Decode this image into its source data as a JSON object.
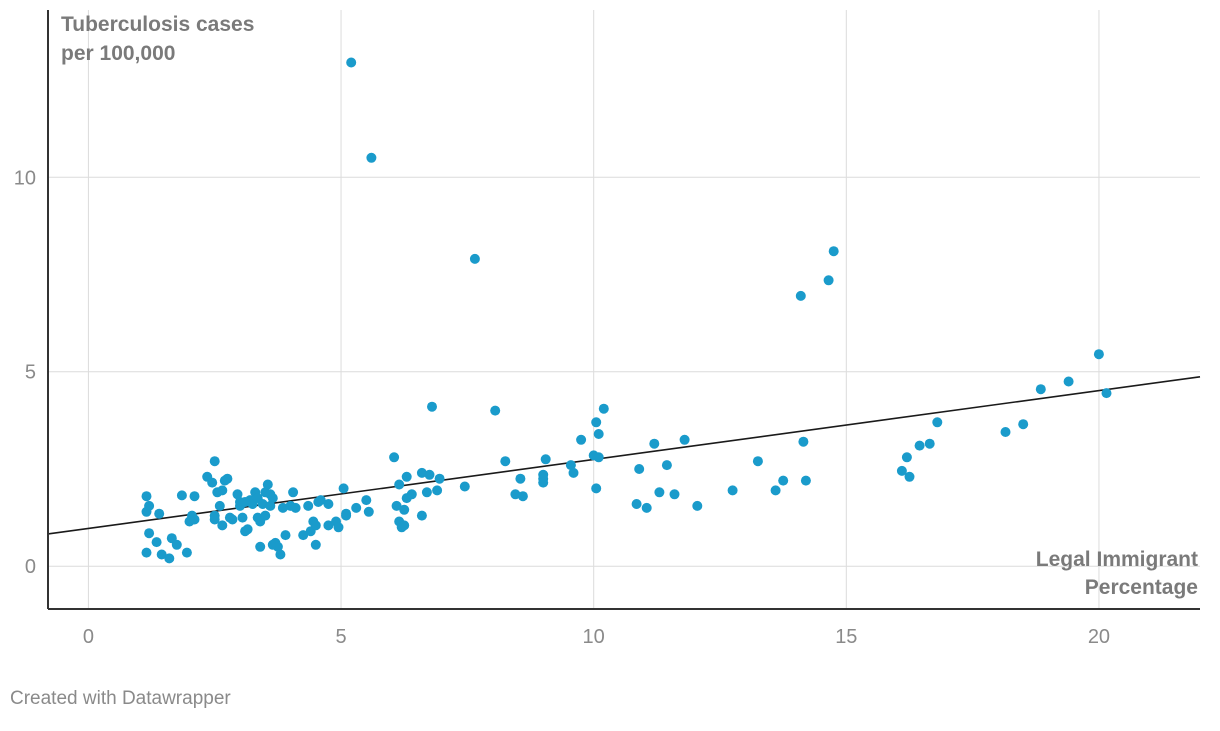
{
  "chart_data": {
    "type": "scatter",
    "ylabel_lines": [
      "Tuberculosis cases",
      "per 100,000"
    ],
    "xlabel_lines": [
      "Legal Immigrant",
      "Percentage"
    ],
    "xlim": [
      -0.8,
      22
    ],
    "ylim": [
      -1.1,
      14.3
    ],
    "x_ticks": [
      0,
      5,
      10,
      15,
      20
    ],
    "x_tick_labels": [
      "0",
      "5",
      "10",
      "15",
      "20"
    ],
    "y_ticks": [
      0,
      5,
      10
    ],
    "y_tick_labels": [
      "0",
      "5",
      "10"
    ],
    "grid": true,
    "point_color": "#1a9bcb",
    "trendline": {
      "x": [
        -0.8,
        22
      ],
      "y": [
        0.83,
        4.87
      ]
    },
    "points": [
      [
        1.15,
        1.8
      ],
      [
        1.2,
        1.55
      ],
      [
        1.15,
        1.4
      ],
      [
        1.4,
        1.35
      ],
      [
        1.2,
        0.85
      ],
      [
        1.35,
        0.62
      ],
      [
        1.15,
        0.35
      ],
      [
        1.45,
        0.3
      ],
      [
        1.6,
        0.2
      ],
      [
        1.65,
        0.72
      ],
      [
        1.75,
        0.55
      ],
      [
        1.85,
        1.82
      ],
      [
        1.95,
        0.35
      ],
      [
        2.0,
        1.15
      ],
      [
        2.05,
        1.3
      ],
      [
        2.1,
        1.8
      ],
      [
        2.1,
        1.2
      ],
      [
        2.35,
        2.3
      ],
      [
        2.45,
        2.15
      ],
      [
        2.5,
        2.7
      ],
      [
        2.55,
        1.9
      ],
      [
        2.5,
        1.3
      ],
      [
        2.5,
        1.2
      ],
      [
        2.6,
        1.55
      ],
      [
        2.65,
        1.95
      ],
      [
        2.65,
        1.05
      ],
      [
        2.7,
        2.2
      ],
      [
        2.75,
        2.25
      ],
      [
        2.8,
        1.25
      ],
      [
        2.85,
        1.2
      ],
      [
        2.95,
        1.85
      ],
      [
        3.0,
        1.55
      ],
      [
        3.0,
        1.65
      ],
      [
        3.05,
        1.25
      ],
      [
        3.1,
        1.65
      ],
      [
        3.1,
        0.9
      ],
      [
        3.15,
        0.95
      ],
      [
        3.2,
        1.7
      ],
      [
        3.25,
        1.6
      ],
      [
        3.3,
        1.9
      ],
      [
        3.35,
        1.75
      ],
      [
        3.35,
        1.25
      ],
      [
        3.4,
        1.15
      ],
      [
        3.4,
        0.5
      ],
      [
        3.45,
        1.6
      ],
      [
        3.5,
        1.9
      ],
      [
        3.5,
        1.3
      ],
      [
        3.55,
        2.1
      ],
      [
        3.6,
        1.85
      ],
      [
        3.6,
        1.55
      ],
      [
        3.65,
        1.75
      ],
      [
        3.65,
        0.55
      ],
      [
        3.7,
        0.6
      ],
      [
        3.75,
        0.5
      ],
      [
        3.8,
        0.3
      ],
      [
        3.85,
        1.5
      ],
      [
        3.9,
        0.8
      ],
      [
        4.0,
        1.55
      ],
      [
        4.05,
        1.9
      ],
      [
        4.1,
        1.5
      ],
      [
        4.25,
        0.8
      ],
      [
        4.35,
        1.55
      ],
      [
        4.4,
        0.9
      ],
      [
        4.45,
        1.15
      ],
      [
        4.5,
        1.05
      ],
      [
        4.5,
        0.55
      ],
      [
        4.55,
        1.65
      ],
      [
        4.6,
        1.7
      ],
      [
        4.75,
        1.6
      ],
      [
        4.75,
        1.05
      ],
      [
        4.9,
        1.15
      ],
      [
        4.95,
        1.0
      ],
      [
        5.05,
        2.0
      ],
      [
        5.1,
        1.35
      ],
      [
        5.1,
        1.3
      ],
      [
        5.2,
        12.95
      ],
      [
        5.3,
        1.5
      ],
      [
        5.5,
        1.7
      ],
      [
        5.55,
        1.4
      ],
      [
        5.6,
        10.5
      ],
      [
        6.05,
        2.8
      ],
      [
        6.1,
        1.55
      ],
      [
        6.15,
        2.1
      ],
      [
        6.15,
        1.15
      ],
      [
        6.2,
        1.0
      ],
      [
        6.25,
        1.05
      ],
      [
        6.25,
        1.45
      ],
      [
        6.3,
        1.75
      ],
      [
        6.3,
        2.3
      ],
      [
        6.4,
        1.85
      ],
      [
        6.6,
        2.4
      ],
      [
        6.6,
        1.3
      ],
      [
        6.7,
        1.9
      ],
      [
        6.75,
        2.35
      ],
      [
        6.8,
        4.1
      ],
      [
        6.9,
        1.95
      ],
      [
        6.95,
        2.25
      ],
      [
        7.45,
        2.05
      ],
      [
        7.65,
        7.9
      ],
      [
        8.05,
        4.0
      ],
      [
        8.25,
        2.7
      ],
      [
        8.45,
        1.85
      ],
      [
        8.55,
        2.25
      ],
      [
        8.6,
        1.8
      ],
      [
        9.0,
        2.35
      ],
      [
        9.0,
        2.25
      ],
      [
        9.0,
        2.15
      ],
      [
        9.05,
        2.75
      ],
      [
        9.55,
        2.6
      ],
      [
        9.6,
        2.4
      ],
      [
        9.75,
        3.25
      ],
      [
        10.0,
        2.85
      ],
      [
        10.05,
        2.0
      ],
      [
        10.05,
        3.7
      ],
      [
        10.1,
        3.4
      ],
      [
        10.1,
        2.8
      ],
      [
        10.2,
        4.05
      ],
      [
        10.85,
        1.6
      ],
      [
        10.9,
        2.5
      ],
      [
        11.05,
        1.5
      ],
      [
        11.2,
        3.15
      ],
      [
        11.3,
        1.9
      ],
      [
        11.45,
        2.6
      ],
      [
        11.6,
        1.85
      ],
      [
        11.8,
        3.25
      ],
      [
        12.05,
        1.55
      ],
      [
        12.75,
        1.95
      ],
      [
        13.25,
        2.7
      ],
      [
        13.6,
        1.95
      ],
      [
        13.75,
        2.2
      ],
      [
        14.1,
        6.95
      ],
      [
        14.15,
        3.2
      ],
      [
        14.2,
        2.2
      ],
      [
        14.65,
        7.35
      ],
      [
        14.75,
        8.1
      ],
      [
        16.1,
        2.45
      ],
      [
        16.2,
        2.8
      ],
      [
        16.25,
        2.3
      ],
      [
        16.45,
        3.1
      ],
      [
        16.65,
        3.15
      ],
      [
        16.8,
        3.7
      ],
      [
        18.15,
        3.45
      ],
      [
        18.5,
        3.65
      ],
      [
        18.85,
        4.55
      ],
      [
        19.4,
        4.75
      ],
      [
        20.0,
        5.45
      ],
      [
        20.15,
        4.45
      ]
    ]
  },
  "footer": {
    "credit": "Created with Datawrapper"
  }
}
